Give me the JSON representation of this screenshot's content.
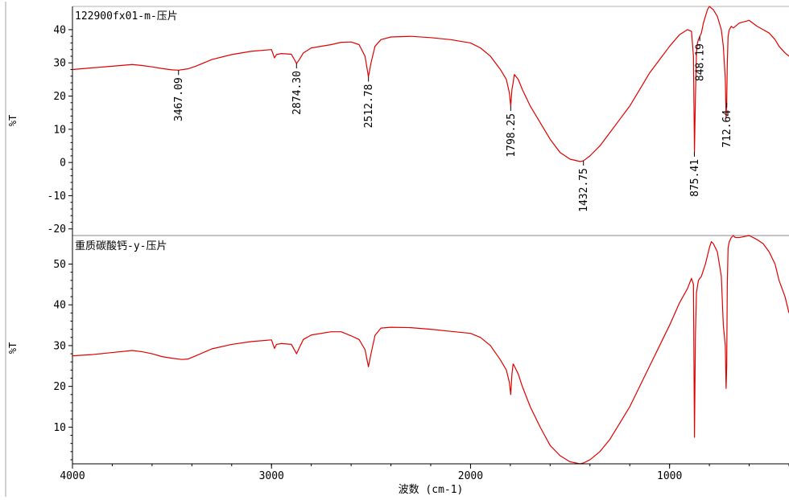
{
  "colors": {
    "trace": "#e00000",
    "axis": "#000000",
    "frame": "#a0a0a0",
    "background": "#ffffff"
  },
  "x_axis": {
    "label": "波数 (cm-1)",
    "ticks": [
      "4000",
      "3000",
      "2000",
      "1000"
    ]
  },
  "chart_data": [
    {
      "type": "line",
      "title": "122900fx01-m-压片",
      "xlabel": "波数 (cm-1)",
      "ylabel": "%T",
      "xlim": [
        4000,
        400
      ],
      "ylim": [
        -22,
        47
      ],
      "x_reversed": true,
      "grid": false,
      "yticks": [
        40,
        30,
        20,
        10,
        0,
        -10,
        -20
      ],
      "series": [
        {
          "x": [
            4000,
            3900,
            3800,
            3700,
            3650,
            3600,
            3550,
            3500,
            3467,
            3420,
            3380,
            3300,
            3200,
            3100,
            3000,
            2985,
            2975,
            2950,
            2900,
            2874,
            2860,
            2840,
            2800,
            2700,
            2650,
            2600,
            2560,
            2530,
            2513,
            2500,
            2480,
            2450,
            2400,
            2300,
            2200,
            2100,
            2000,
            1950,
            1900,
            1850,
            1820,
            1805,
            1798,
            1792,
            1786,
            1780,
            1760,
            1740,
            1700,
            1650,
            1600,
            1550,
            1500,
            1450,
            1433,
            1400,
            1350,
            1300,
            1250,
            1200,
            1150,
            1100,
            1050,
            1000,
            950,
            910,
            890,
            880,
            875,
            870,
            865,
            860,
            855,
            848,
            840,
            830,
            820,
            810,
            800,
            790,
            780,
            770,
            760,
            740,
            730,
            720,
            716,
            713,
            710,
            706,
            700,
            690,
            680,
            670,
            650,
            600,
            560,
            530,
            500,
            470,
            450,
            420,
            400
          ],
          "y": [
            28,
            28.5,
            29,
            29.5,
            29.2,
            28.8,
            28.3,
            27.9,
            27.8,
            28.2,
            29,
            31,
            32.5,
            33.5,
            34,
            31.5,
            32.5,
            32.8,
            32.6,
            29.8,
            31,
            33,
            34.5,
            35.5,
            36.2,
            36.3,
            35.5,
            32,
            25.8,
            30,
            35,
            37,
            37.8,
            38,
            37.6,
            37,
            36,
            34.5,
            32,
            28,
            25,
            21,
            17,
            22,
            24,
            26.5,
            25,
            22,
            17,
            12,
            7,
            3,
            1,
            0.3,
            0.5,
            2,
            5,
            9,
            13,
            17,
            22,
            27,
            31,
            35,
            38.5,
            40,
            39.5,
            32,
            3.2,
            20,
            33,
            36,
            37,
            38,
            39,
            42,
            44,
            46,
            47,
            46.5,
            46,
            45,
            44,
            40,
            35,
            25,
            13.5,
            18,
            30,
            38,
            40,
            41,
            40.5,
            41,
            42,
            42.8,
            41,
            40,
            39,
            37,
            35,
            33,
            32
          ]
        }
      ],
      "annotations": [
        "3467.09",
        "2874.30",
        "2512.78",
        "1798.25",
        "1432.75",
        "875.41",
        "848.19",
        "712.64"
      ]
    },
    {
      "type": "line",
      "title": "重质碳酸钙-y-压片",
      "xlabel": "波数 (cm-1)",
      "ylabel": "%T",
      "xlim": [
        4000,
        400
      ],
      "ylim": [
        1,
        57
      ],
      "x_reversed": true,
      "grid": false,
      "yticks": [
        50,
        40,
        30,
        20,
        10
      ],
      "series": [
        {
          "x": [
            4000,
            3900,
            3800,
            3700,
            3650,
            3600,
            3550,
            3500,
            3450,
            3420,
            3380,
            3300,
            3200,
            3100,
            3000,
            2985,
            2975,
            2950,
            2900,
            2874,
            2860,
            2840,
            2800,
            2700,
            2650,
            2600,
            2560,
            2530,
            2513,
            2500,
            2480,
            2450,
            2400,
            2300,
            2200,
            2100,
            2000,
            1950,
            1900,
            1850,
            1820,
            1805,
            1798,
            1792,
            1786,
            1780,
            1760,
            1740,
            1700,
            1650,
            1600,
            1550,
            1500,
            1450,
            1433,
            1400,
            1350,
            1300,
            1250,
            1200,
            1150,
            1100,
            1050,
            1000,
            950,
            910,
            890,
            880,
            875,
            870,
            865,
            860,
            855,
            848,
            840,
            830,
            820,
            810,
            800,
            790,
            780,
            770,
            760,
            740,
            730,
            720,
            716,
            713,
            710,
            706,
            700,
            690,
            680,
            670,
            650,
            600,
            560,
            530,
            500,
            470,
            450,
            420,
            400
          ],
          "y": [
            27.5,
            27.8,
            28.3,
            28.8,
            28.5,
            28,
            27.3,
            26.9,
            26.6,
            26.7,
            27.5,
            29.2,
            30.3,
            31,
            31.4,
            29.3,
            30.3,
            30.5,
            30.3,
            28,
            29.5,
            31.5,
            32.6,
            33.4,
            33.4,
            32.4,
            31.5,
            29,
            24.8,
            28,
            32.5,
            34.3,
            34.5,
            34.4,
            34,
            33.5,
            33,
            32,
            30,
            26.5,
            24,
            21,
            18,
            23,
            25.5,
            25,
            23,
            20,
            15,
            10,
            5.5,
            3,
            1.5,
            1,
            1.2,
            2,
            4,
            7,
            11,
            15,
            20,
            25,
            30,
            35,
            40.5,
            44,
            46.5,
            45,
            7.5,
            33,
            43,
            44.5,
            46,
            46.5,
            47,
            48.5,
            50,
            52,
            54,
            55.5,
            55,
            54,
            53,
            47,
            35,
            30,
            19.5,
            25,
            45,
            54,
            55.5,
            56.5,
            57,
            56.5,
            56.5,
            57,
            56,
            55,
            53,
            50,
            46,
            42,
            38
          ]
        }
      ],
      "annotations": []
    }
  ]
}
